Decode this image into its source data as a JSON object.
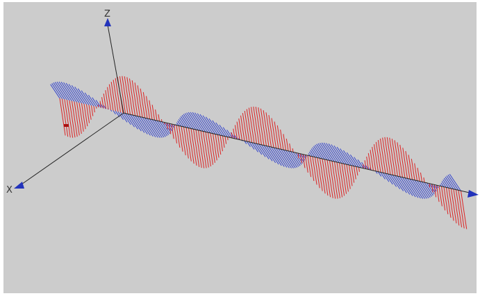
{
  "axes": {
    "z": {
      "label": "Z"
    },
    "x": {
      "label": "X"
    }
  }
}
